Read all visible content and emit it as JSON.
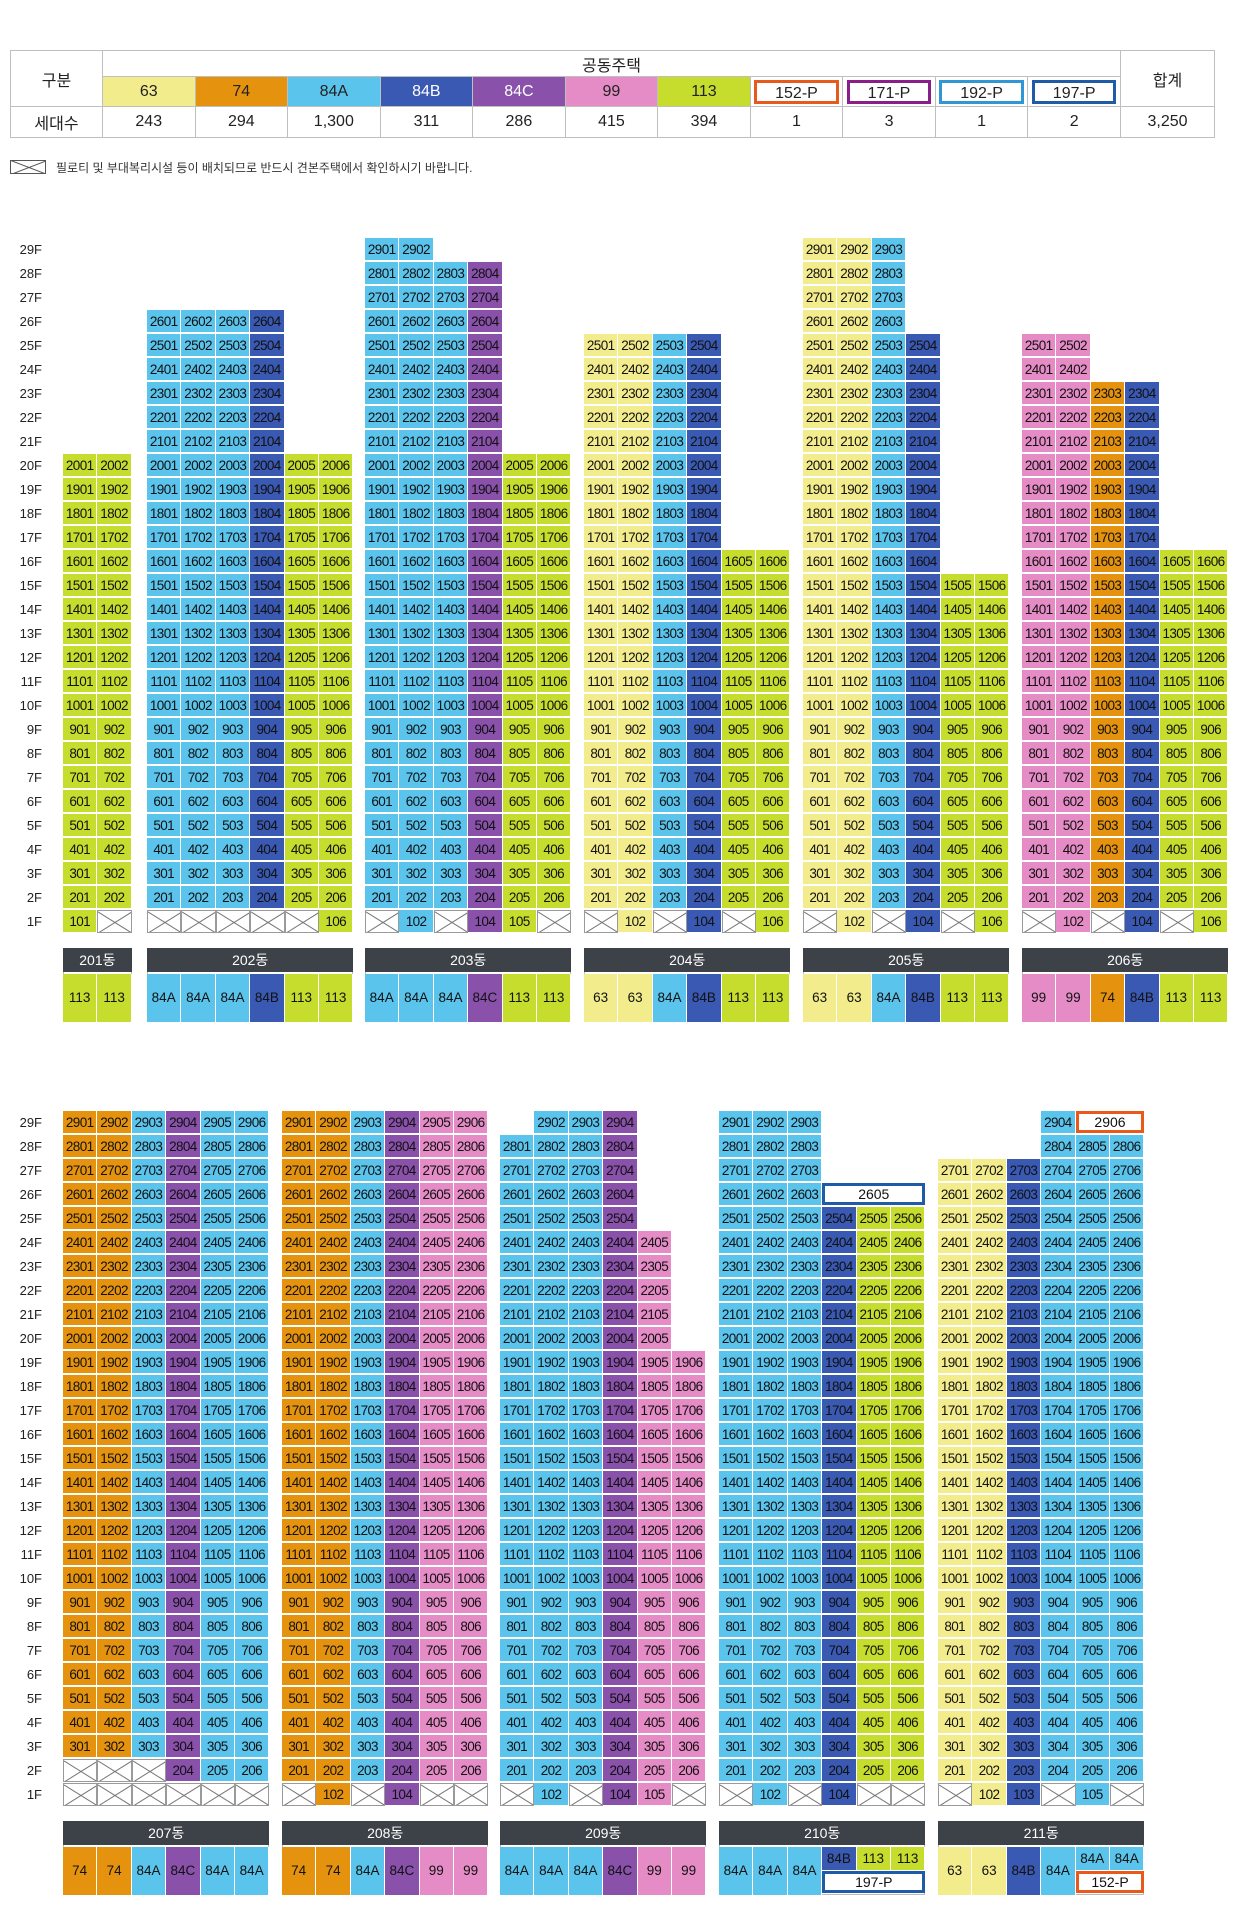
{
  "colors": {
    "63": "#f3ec8c",
    "74": "#e5930f",
    "84A": "#5ac4ec",
    "84B": "#3a59b2",
    "84C": "#8a51ab",
    "99": "#e58bc6",
    "113": "#c6dd2e",
    "152-P": "#e85a1b",
    "171-P": "#8b1f8a",
    "192-P": "#2f98d4",
    "197-P": "#1f5ca8"
  },
  "legend": {
    "gubun_label": "구분",
    "group_label": "공동주택",
    "total_label": "합계",
    "count_label": "세대수",
    "types": [
      {
        "name": "63",
        "count": "243"
      },
      {
        "name": "74",
        "count": "294"
      },
      {
        "name": "84A",
        "count": "1,300"
      },
      {
        "name": "84B",
        "count": "311"
      },
      {
        "name": "84C",
        "count": "286"
      },
      {
        "name": "99",
        "count": "415"
      },
      {
        "name": "113",
        "count": "394"
      },
      {
        "name": "152-P",
        "count": "1"
      },
      {
        "name": "171-P",
        "count": "3"
      },
      {
        "name": "192-P",
        "count": "1"
      },
      {
        "name": "197-P",
        "count": "2"
      }
    ],
    "total": "3,250"
  },
  "note": "필로티 및 부대복리시설 등이 배치되므로 반드시 견본주택에서 확인하시기 바랍니다.",
  "floor_labels": [
    "29F",
    "28F",
    "27F",
    "26F",
    "25F",
    "24F",
    "23F",
    "22F",
    "21F",
    "20F",
    "19F",
    "18F",
    "17F",
    "16F",
    "15F",
    "14F",
    "13F",
    "12F",
    "11F",
    "10F",
    "9F",
    "8F",
    "7F",
    "6F",
    "5F",
    "4F",
    "3F",
    "2F",
    "1F"
  ],
  "buildings": [
    {
      "name": "201동",
      "lines": [
        {
          "type": "113",
          "top": 20,
          "first": 1,
          "x1": []
        },
        {
          "type": "113",
          "top": 20,
          "first": 2,
          "x1": [
            1
          ]
        }
      ]
    },
    {
      "name": "202동",
      "lines": [
        {
          "type": "84A",
          "top": 26,
          "first": 2,
          "x1": [
            1
          ]
        },
        {
          "type": "84A",
          "top": 26,
          "first": 2,
          "x1": [
            1
          ]
        },
        {
          "type": "84A",
          "top": 26,
          "first": 2,
          "x1": [
            1
          ]
        },
        {
          "type": "84B",
          "top": 26,
          "first": 2,
          "x1": [
            1
          ]
        },
        {
          "type": "113",
          "top": 20,
          "first": 2,
          "x1": [
            1
          ]
        },
        {
          "type": "113",
          "top": 20,
          "first": 1,
          "x1": []
        }
      ]
    },
    {
      "name": "203동",
      "lines": [
        {
          "type": "84A",
          "top": 29,
          "first": 2,
          "x1": [
            1
          ]
        },
        {
          "type": "84A",
          "top": 29,
          "first": 1,
          "x1": []
        },
        {
          "type": "84A",
          "top": 28,
          "first": 2,
          "x1": [
            1
          ]
        },
        {
          "type": "84C",
          "top": 28,
          "first": 1,
          "x1": []
        },
        {
          "type": "113",
          "top": 20,
          "first": 1,
          "x1": []
        },
        {
          "type": "113",
          "top": 20,
          "first": 2,
          "x1": [
            1
          ]
        }
      ]
    },
    {
      "name": "204동",
      "lines": [
        {
          "type": "63",
          "top": 25,
          "first": 2,
          "x1": [
            1
          ]
        },
        {
          "type": "63",
          "top": 25,
          "first": 1,
          "x1": []
        },
        {
          "type": "84A",
          "top": 25,
          "first": 2,
          "x1": [
            1
          ]
        },
        {
          "type": "84B",
          "top": 25,
          "first": 1,
          "x1": []
        },
        {
          "type": "113",
          "top": 16,
          "first": 2,
          "x1": [
            1
          ]
        },
        {
          "type": "113",
          "top": 16,
          "first": 1,
          "x1": []
        }
      ]
    },
    {
      "name": "205동",
      "lines": [
        {
          "type": "63",
          "top": 29,
          "first": 2,
          "x1": [
            1
          ]
        },
        {
          "type": "63",
          "top": 29,
          "first": 1,
          "x1": []
        },
        {
          "type": "84A",
          "top": 29,
          "first": 2,
          "x1": [
            1
          ]
        },
        {
          "type": "84B",
          "top": 25,
          "first": 1,
          "x1": []
        },
        {
          "type": "113",
          "top": 15,
          "first": 2,
          "x1": [
            1
          ]
        },
        {
          "type": "113",
          "top": 15,
          "first": 1,
          "x1": []
        }
      ]
    },
    {
      "name": "206동",
      "lines": [
        {
          "type": "99",
          "top": 25,
          "first": 2,
          "x1": [
            1
          ]
        },
        {
          "type": "99",
          "top": 25,
          "first": 1,
          "x1": []
        },
        {
          "type": "74",
          "top": 23,
          "first": 2,
          "x1": [
            1
          ]
        },
        {
          "type": "84B",
          "top": 23,
          "first": 1,
          "x1": []
        },
        {
          "type": "113",
          "top": 16,
          "first": 2,
          "x1": [
            1
          ]
        },
        {
          "type": "113",
          "top": 16,
          "first": 1,
          "x1": []
        }
      ]
    },
    {
      "name": "207동",
      "lines": [
        {
          "type": "74",
          "top": 29,
          "first": 3,
          "x1": [
            1,
            2
          ]
        },
        {
          "type": "74",
          "top": 29,
          "first": 3,
          "x1": [
            1,
            2
          ]
        },
        {
          "type": "84A",
          "top": 29,
          "first": 3,
          "x1": [
            1,
            2
          ]
        },
        {
          "type": "84C",
          "top": 29,
          "first": 2,
          "x1": [
            1
          ]
        },
        {
          "type": "84A",
          "top": 29,
          "first": 2,
          "x1": [
            1
          ]
        },
        {
          "type": "84A",
          "top": 29,
          "first": 2,
          "x1": [
            1
          ]
        }
      ]
    },
    {
      "name": "208동",
      "lines": [
        {
          "type": "74",
          "top": 29,
          "first": 2,
          "x1": [
            1
          ]
        },
        {
          "type": "74",
          "top": 29,
          "first": 1,
          "x1": []
        },
        {
          "type": "84A",
          "top": 29,
          "first": 2,
          "x1": [
            1
          ]
        },
        {
          "type": "84C",
          "top": 29,
          "first": 1,
          "x1": []
        },
        {
          "type": "99",
          "top": 29,
          "first": 2,
          "x1": [
            1
          ]
        },
        {
          "type": "99",
          "top": 29,
          "first": 2,
          "x1": [
            1
          ]
        }
      ]
    },
    {
      "name": "209동",
      "lines": [
        {
          "type": "84A",
          "top": 28,
          "first": 2,
          "x1": [
            1
          ]
        },
        {
          "type": "84A",
          "top": 29,
          "first": 1,
          "x1": []
        },
        {
          "type": "84A",
          "top": 29,
          "first": 2,
          "x1": [
            1
          ]
        },
        {
          "type": "84C",
          "top": 29,
          "first": 1,
          "x1": []
        },
        {
          "type": "99",
          "top": 24,
          "first": 1,
          "x1": []
        },
        {
          "type": "99",
          "top": 19,
          "first": 2,
          "x1": [
            1
          ]
        }
      ]
    },
    {
      "name": "210동",
      "lines": [
        {
          "type": "84A",
          "top": 29,
          "first": 2,
          "x1": [
            1
          ]
        },
        {
          "type": "84A",
          "top": 29,
          "first": 1,
          "x1": []
        },
        {
          "type": "84A",
          "top": 29,
          "first": 2,
          "x1": [
            1
          ]
        },
        {
          "type": "84B",
          "top": 25,
          "first": 1,
          "x1": []
        },
        {
          "type": "113",
          "top": 25,
          "first": 2,
          "x1": [
            1
          ]
        },
        {
          "type": "113",
          "top": 25,
          "first": 2,
          "x1": [
            1
          ]
        }
      ]
    },
    {
      "name": "211동",
      "lines": [
        {
          "type": "63",
          "top": 27,
          "first": 2,
          "x1": [
            1
          ]
        },
        {
          "type": "63",
          "top": 27,
          "first": 1,
          "x1": []
        },
        {
          "type": "84B",
          "top": 27,
          "first": 1,
          "x1": []
        },
        {
          "type": "84A",
          "top": 29,
          "first": 2,
          "x1": [
            1
          ]
        },
        {
          "type": "84A",
          "top": 28,
          "first": 1,
          "x1": []
        },
        {
          "type": "84A",
          "top": 28,
          "first": 2,
          "x1": [
            1
          ]
        }
      ]
    }
  ],
  "penthouses": [
    {
      "building": "210동",
      "unit": "2605",
      "type": "197-P"
    },
    {
      "building": "211동",
      "unit": "2906",
      "type": "152-P"
    }
  ],
  "bottom_labels": [
    [
      "113",
      "113"
    ],
    [
      "84A",
      "84A",
      "84A",
      "84B",
      "113",
      "113"
    ],
    [
      "84A",
      "84A",
      "84A",
      "84C",
      "113",
      "113"
    ],
    [
      "63",
      "63",
      "84A",
      "84B",
      "113",
      "113"
    ],
    [
      "63",
      "63",
      "84A",
      "84B",
      "113",
      "113"
    ],
    [
      "99",
      "99",
      "74",
      "84B",
      "113",
      "113"
    ],
    [
      "74",
      "74",
      "84A",
      "84C",
      "84A",
      "84A"
    ],
    [
      "74",
      "74",
      "84A",
      "84C",
      "99",
      "99"
    ],
    [
      "84A",
      "84A",
      "84A",
      "84C",
      "99",
      "99"
    ],
    [
      "84A",
      "84A",
      "84A",
      "84B",
      "113",
      "113"
    ],
    [
      "63",
      "63",
      "84B",
      "84A",
      "84A",
      "84A"
    ]
  ],
  "bottom_extra": [
    {
      "building": "210동",
      "label": "197-P"
    },
    {
      "building": "211동",
      "label": "152-P"
    }
  ]
}
